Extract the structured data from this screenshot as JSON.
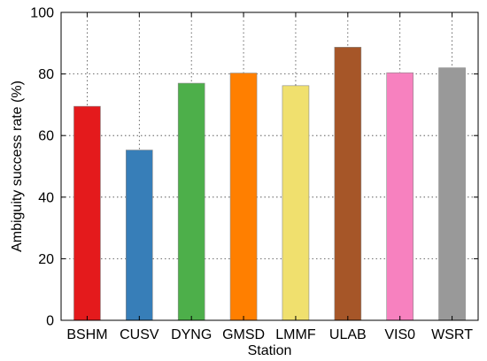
{
  "chart_data": {
    "type": "bar",
    "categories": [
      "BSHM",
      "CUSV",
      "DYNG",
      "GMSD",
      "LMMF",
      "ULAB",
      "VIS0",
      "WSRT"
    ],
    "values": [
      69.5,
      55.3,
      77.0,
      80.3,
      76.2,
      88.7,
      80.4,
      82.0
    ],
    "colors": [
      "#e41a1c",
      "#377eb8",
      "#4daf4a",
      "#ff7f00",
      "#f0e06e",
      "#a65628",
      "#f781bf",
      "#999999"
    ],
    "xlabel": "Station",
    "ylabel": "Ambiguity success rate (%)",
    "ylim": [
      0,
      100
    ],
    "yticks": [
      0,
      20,
      40,
      60,
      80,
      100
    ],
    "grid": true,
    "legend": "none"
  }
}
